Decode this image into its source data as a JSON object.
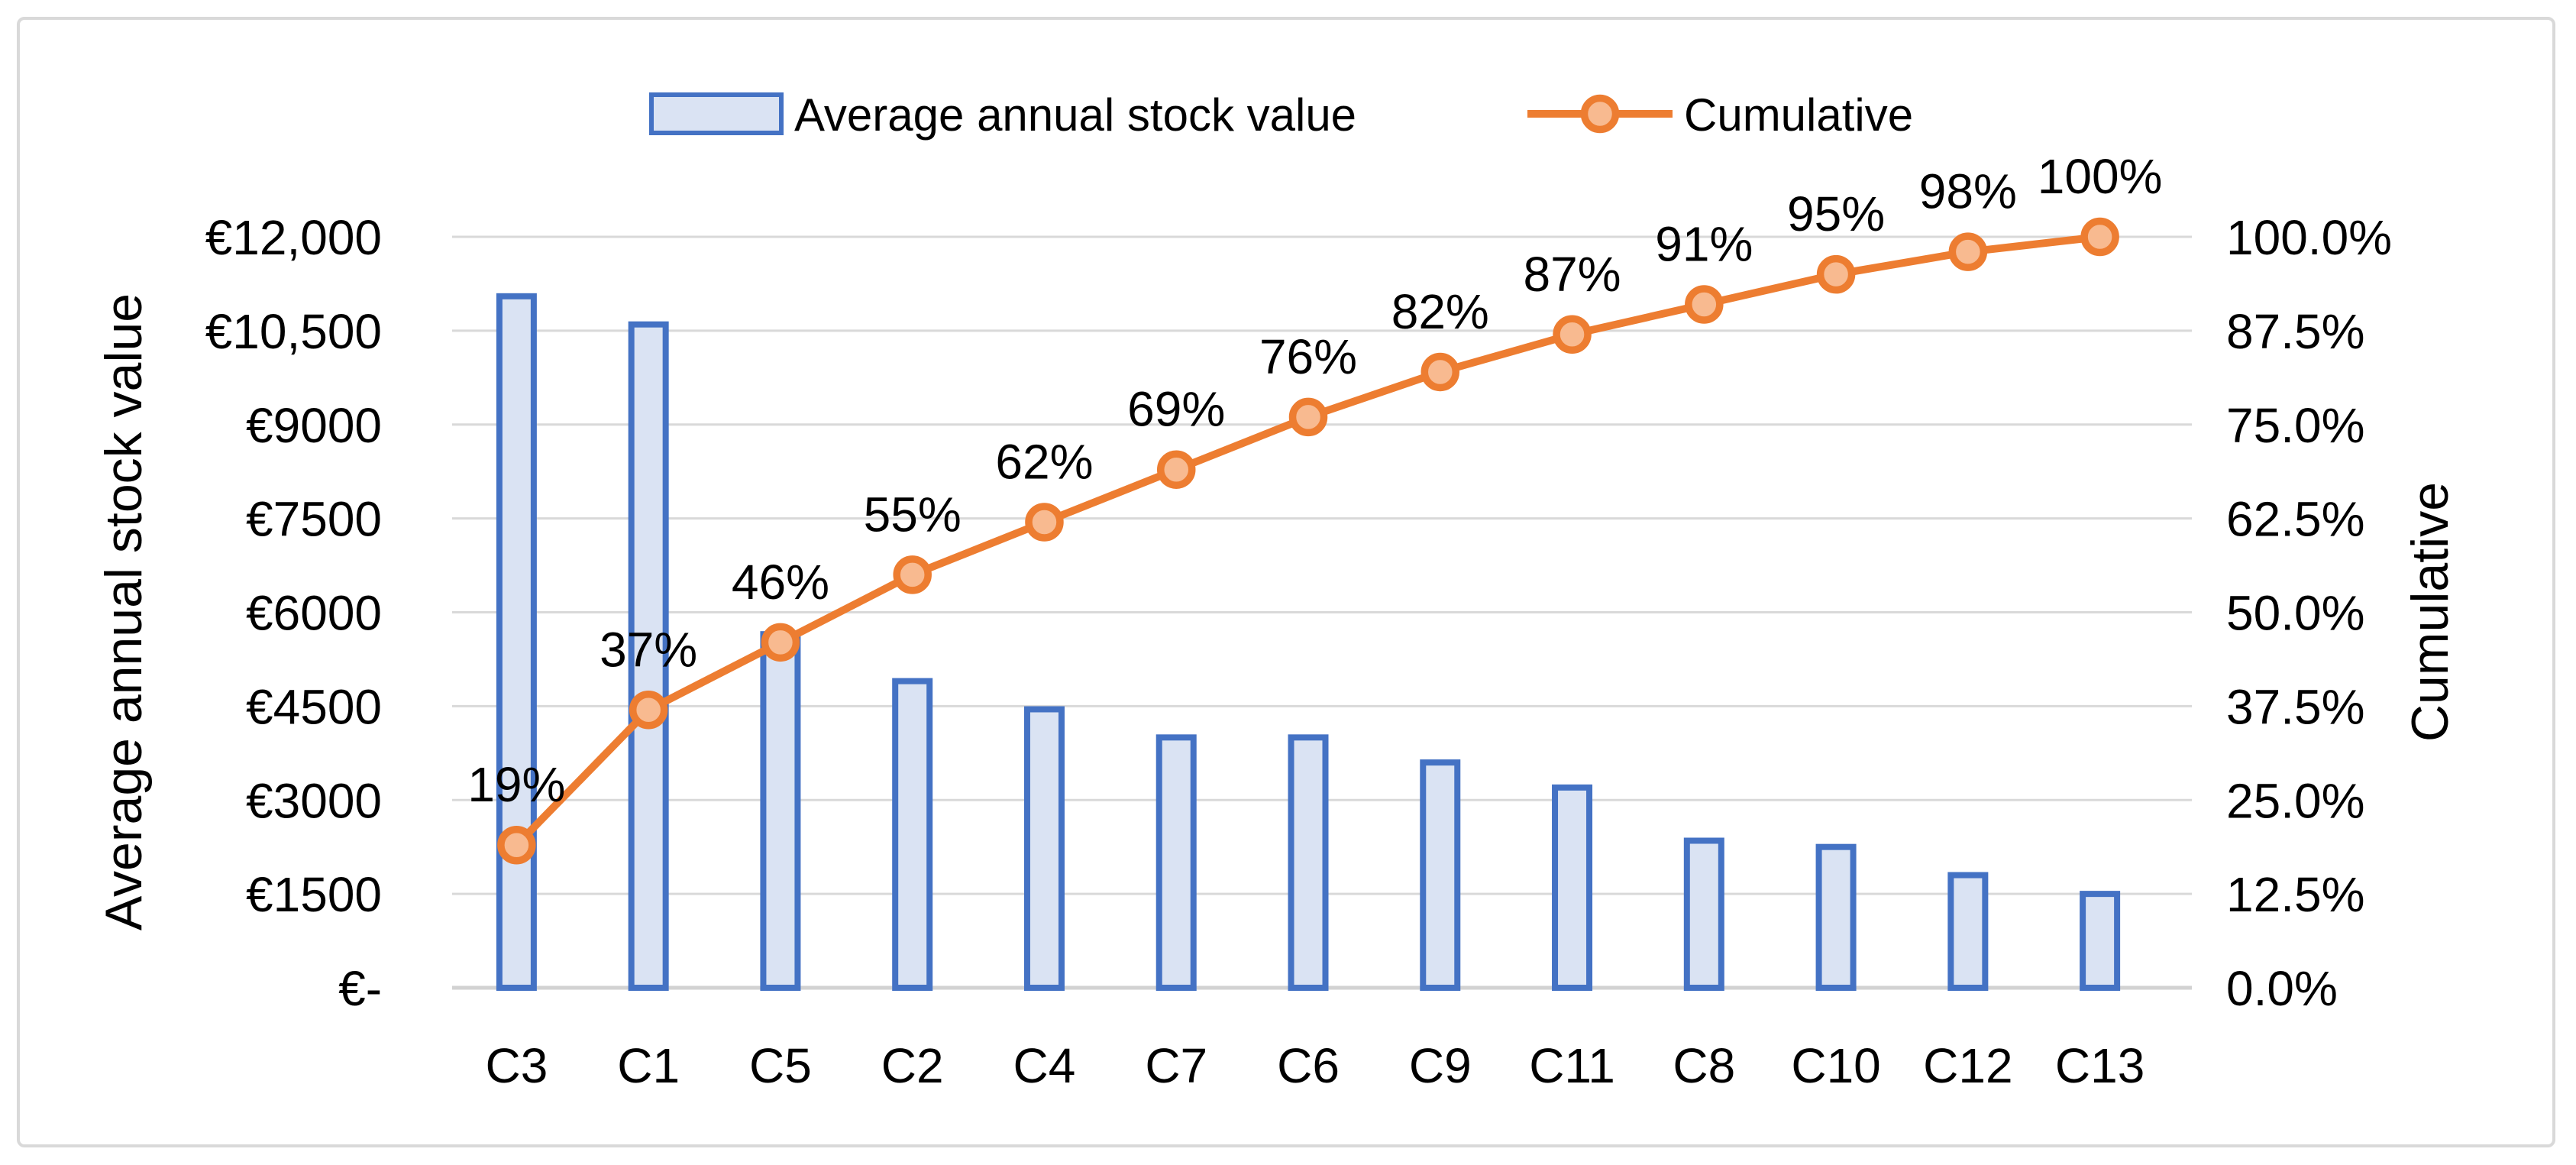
{
  "chart_data": {
    "type": "pareto (bar + line combo)",
    "title": "",
    "categories": [
      "C3",
      "C1",
      "C5",
      "C2",
      "C4",
      "C7",
      "C6",
      "C9",
      "C11",
      "C8",
      "C10",
      "C12",
      "C13"
    ],
    "series": [
      {
        "name": "Average annual stock value",
        "type": "bar",
        "axis": "left",
        "values": [
          11050,
          10600,
          5650,
          4900,
          4450,
          4000,
          4000,
          3600,
          3200,
          2350,
          2250,
          1800,
          1500
        ]
      },
      {
        "name": "Cumulative",
        "type": "line",
        "axis": "right",
        "values_percent": [
          19,
          37,
          46,
          55,
          62,
          69,
          76,
          82,
          87,
          91,
          95,
          98,
          100
        ],
        "data_labels": [
          "19%",
          "37%",
          "46%",
          "55%",
          "62%",
          "69%",
          "76%",
          "82%",
          "87%",
          "91%",
          "95%",
          "98%",
          "100%"
        ]
      }
    ],
    "left_axis": {
      "title": "Average annual stock value",
      "min": 0,
      "max": 12000,
      "step": 1500,
      "tick_labels": [
        "€-",
        "€1500",
        "€3000",
        "€4500",
        "€6000",
        "€7500",
        "€9000",
        "€10,500",
        "€12,000"
      ]
    },
    "right_axis": {
      "title": "Cumulative",
      "min": 0,
      "max": 100,
      "step": 12.5,
      "tick_labels": [
        "0.0%",
        "12.5%",
        "25.0%",
        "37.5%",
        "50.0%",
        "62.5%",
        "75.0%",
        "87.5%",
        "100.0%"
      ]
    },
    "legend": {
      "position": "top",
      "items": [
        {
          "label": "Average annual stock value",
          "marker": "bar-swatch"
        },
        {
          "label": "Cumulative",
          "marker": "line-marker-swatch"
        }
      ]
    },
    "gridlines": "horizontal",
    "colors": {
      "bar_fill": "#dae3f3",
      "bar_border": "#4472c4",
      "line": "#ed7d31",
      "marker_fill": "#f8ba90",
      "marker_ring": "#ed7d31",
      "gridline": "#d9d9d9",
      "axis_line": "#d2d2d2",
      "frame_border": "#d9d9d9",
      "text": "#000000",
      "background": "#ffffff"
    }
  }
}
